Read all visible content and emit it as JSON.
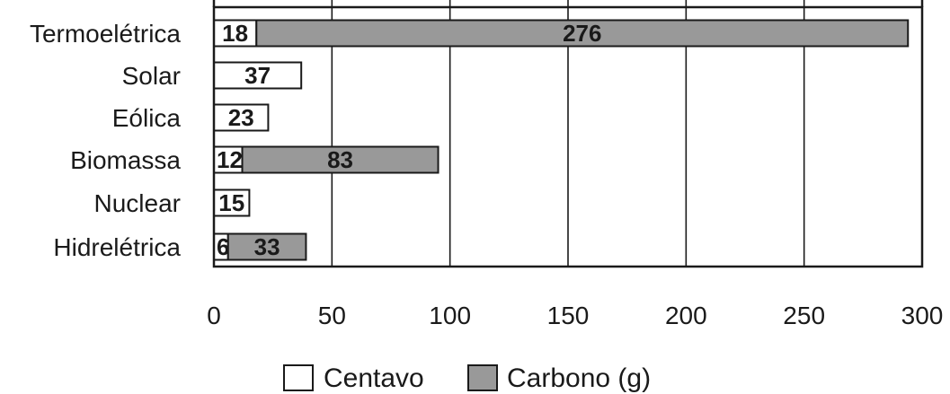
{
  "chart_data": {
    "type": "bar",
    "orientation": "horizontal",
    "stacked": true,
    "categories": [
      "Termoelétrica",
      "Solar",
      "Eólica",
      "Biomassa",
      "Nuclear",
      "Hidrelétrica"
    ],
    "series": [
      {
        "name": "Centavo",
        "values": [
          18,
          37,
          23,
          12,
          15,
          6
        ],
        "color": "#ffffff"
      },
      {
        "name": "Carbono (g)",
        "values": [
          276,
          0,
          0,
          83,
          0,
          33
        ],
        "color": "#999999"
      }
    ],
    "data_labels": [
      [
        "18",
        "37",
        "23",
        "12",
        "15",
        "6"
      ],
      [
        "276",
        "",
        "",
        "83",
        "",
        "33"
      ]
    ],
    "x_ticks": [
      "0",
      "50",
      "100",
      "150",
      "200",
      "250",
      "300"
    ],
    "xlim": [
      0,
      300
    ],
    "grid": "vertical",
    "legend_position": "bottom-center"
  }
}
